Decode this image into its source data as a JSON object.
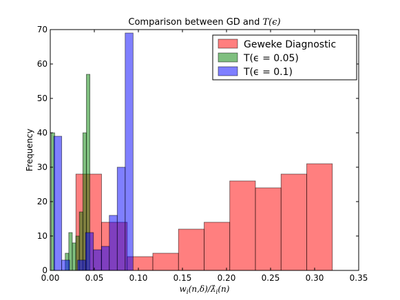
{
  "chart_data": {
    "type": "bar",
    "title": "Comparison between GD and T(ϵ)",
    "xlabel": "w_i(n,δ)/λ̂_i(n)",
    "ylabel": "Frequency",
    "xlim": [
      0.0,
      0.35
    ],
    "ylim": [
      0,
      70
    ],
    "xticks": [
      "0.00",
      "0.05",
      "0.10",
      "0.15",
      "0.20",
      "0.25",
      "0.30",
      "0.35"
    ],
    "yticks": [
      "0",
      "10",
      "20",
      "30",
      "40",
      "50",
      "60",
      "70"
    ],
    "grid": false,
    "legend_position": "top-right",
    "series": [
      {
        "name": "Geweke Diagnostic",
        "color": "#ff0000",
        "bin_edges": [
          0.0,
          0.0291,
          0.0582,
          0.0873,
          0.1164,
          0.1455,
          0.1746,
          0.2037,
          0.2328,
          0.2619,
          0.291,
          0.3201
        ],
        "values": [
          0,
          28,
          14,
          4,
          5,
          12,
          14,
          26,
          24,
          28,
          31
        ]
      },
      {
        "name": "T(ϵ = 0.05)",
        "color": "#008000",
        "bin_edges": [
          0.001,
          0.005,
          0.009,
          0.013,
          0.017,
          0.021,
          0.025,
          0.029,
          0.033,
          0.037,
          0.041,
          0.045,
          0.049
        ],
        "values": [
          40,
          0,
          0,
          0,
          5,
          11,
          8,
          10,
          17,
          40,
          57,
          0
        ]
      },
      {
        "name": "T(ϵ = 0.1)",
        "color": "#0000ff",
        "bin_edges": [
          0.004,
          0.013,
          0.022,
          0.031,
          0.04,
          0.049,
          0.058,
          0.067,
          0.076,
          0.085,
          0.094,
          0.103
        ],
        "values": [
          39,
          3,
          0,
          3,
          11,
          6,
          7,
          16,
          30,
          69,
          0
        ]
      }
    ]
  }
}
